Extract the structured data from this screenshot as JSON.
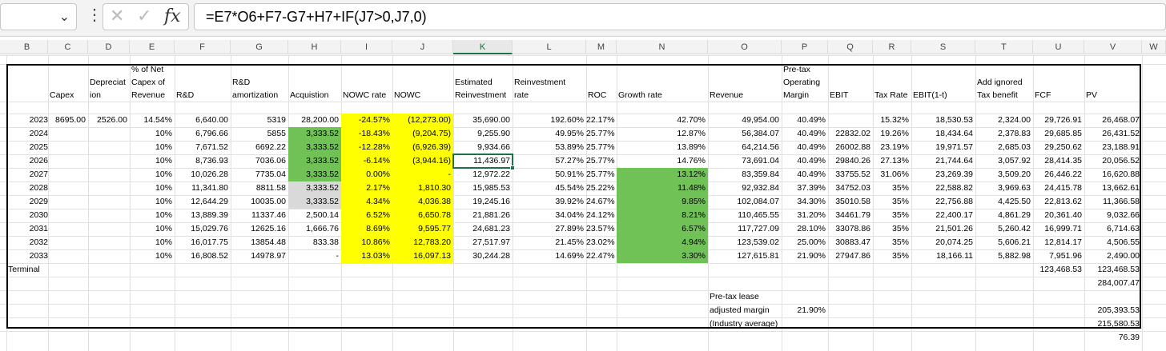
{
  "formula_bar": {
    "name_box": "",
    "formula": "=E7*O6+F7-G7+H7+IF(J7>0,J7,0)",
    "icons": [
      "chevron-down-icon",
      "more-icon",
      "cancel-icon",
      "enter-icon",
      "function-icon"
    ]
  },
  "columns": [
    "B",
    "C",
    "D",
    "E",
    "F",
    "G",
    "H",
    "I",
    "J",
    "K",
    "L",
    "M",
    "N",
    "O",
    "P",
    "Q",
    "R",
    "S",
    "T",
    "U",
    "V",
    "W"
  ],
  "selected_column": "K",
  "header_row": {
    "capex": "Capex",
    "depr_1": "Depreciat",
    "depr_2": "ion",
    "pct_1": "% of Net",
    "pct_2": "Capex of",
    "pct_3": "Revenue",
    "rd": "R&D",
    "rda_1": "R&D",
    "rda_2": "amortization",
    "acq": "Acquistion",
    "nowc_rate": "NOWC rate",
    "nowc": "NOWC",
    "est_1": "Estimated",
    "est_2": "Reinvestment",
    "rr_1": "Reinvestment",
    "rr_2": "rate",
    "roc": "ROC",
    "growth": "Growth rate",
    "revenue": "Revenue",
    "ptm_1": "Pre-tax",
    "ptm_2": "Operating",
    "ptm_3": "Margin",
    "ebit": "EBIT",
    "tax": "Tax Rate",
    "ebit1t": "EBIT(1-t)",
    "add_1": "Add ignored",
    "add_2": "Tax benefit",
    "fcf": "FCF",
    "pv": "PV"
  },
  "rows": [
    {
      "B": "2023",
      "C": "8695.00",
      "D": "2526.00",
      "E": "14.54%",
      "F": "6,640.00",
      "G": "5319",
      "H": "28,200.00",
      "I": "-24.57%",
      "J": "(12,273.00)",
      "K": "35,690.00",
      "L": "192.60%",
      "M": "22.17%",
      "N": "42.70%",
      "O": "49,954.00",
      "P": "40.49%",
      "Q": "",
      "R": "15.32%",
      "S": "18,530.53",
      "T": "2,324.00",
      "U": "29,726.91",
      "V": "26,468.07"
    },
    {
      "B": "2024",
      "C": "",
      "D": "",
      "E": "10%",
      "F": "6,796.66",
      "G": "5855",
      "H": "3,333.52",
      "I": "-18.43%",
      "J": "(9,204.75)",
      "K": "9,255.90",
      "L": "49.95%",
      "M": "25.77%",
      "N": "12.87%",
      "O": "56,384.07",
      "P": "40.49%",
      "Q": "22832.02",
      "R": "19.26%",
      "S": "18,434.64",
      "T": "2,378.83",
      "U": "29,685.85",
      "V": "26,431.52"
    },
    {
      "B": "2025",
      "C": "",
      "D": "",
      "E": "10%",
      "F": "7,671.52",
      "G": "6692.22",
      "H": "3,333.52",
      "I": "-12.28%",
      "J": "(6,926.39)",
      "K": "9,934.66",
      "L": "53.89%",
      "M": "25.77%",
      "N": "13.89%",
      "O": "64,214.56",
      "P": "40.49%",
      "Q": "26002.88",
      "R": "23.19%",
      "S": "19,971.57",
      "T": "2,685.03",
      "U": "29,250.62",
      "V": "23,188.91"
    },
    {
      "B": "2026",
      "C": "",
      "D": "",
      "E": "10%",
      "F": "8,736.93",
      "G": "7036.06",
      "H": "3,333.52",
      "I": "-6.14%",
      "J": "(3,944.16)",
      "K": "11,436.97",
      "L": "57.27%",
      "M": "25.77%",
      "N": "14.76%",
      "O": "73,691.04",
      "P": "40.49%",
      "Q": "29840.26",
      "R": "27.13%",
      "S": "21,744.64",
      "T": "3,057.92",
      "U": "28,414.35",
      "V": "20,056.52"
    },
    {
      "B": "2027",
      "C": "",
      "D": "",
      "E": "10%",
      "F": "10,026.28",
      "G": "7735.04",
      "H": "3,333.52",
      "I": "0.00%",
      "J": "-",
      "K": "12,972.22",
      "L": "50.91%",
      "M": "25.77%",
      "N": "13.12%",
      "O": "83,359.84",
      "P": "40.49%",
      "Q": "33755.52",
      "R": "31.06%",
      "S": "23,269.39",
      "T": "3,509.20",
      "U": "26,446.22",
      "V": "16,620.88"
    },
    {
      "B": "2028",
      "C": "",
      "D": "",
      "E": "10%",
      "F": "11,341.80",
      "G": "8811.58",
      "H": "3,333.52",
      "I": "2.17%",
      "J": "1,810.30",
      "K": "15,985.53",
      "L": "45.54%",
      "M": "25.22%",
      "N": "11.48%",
      "O": "92,932.84",
      "P": "37.39%",
      "Q": "34752.03",
      "R": "35%",
      "S": "22,588.82",
      "T": "3,969.63",
      "U": "24,415.78",
      "V": "13,662.61"
    },
    {
      "B": "2029",
      "C": "",
      "D": "",
      "E": "10%",
      "F": "12,644.29",
      "G": "10035.00",
      "H": "3,333.52",
      "I": "4.34%",
      "J": "4,036.38",
      "K": "19,245.16",
      "L": "39.92%",
      "M": "24.67%",
      "N": "9.85%",
      "O": "102,084.07",
      "P": "34.30%",
      "Q": "35010.58",
      "R": "35%",
      "S": "22,756.88",
      "T": "4,425.50",
      "U": "22,813.62",
      "V": "11,366.58"
    },
    {
      "B": "2030",
      "C": "",
      "D": "",
      "E": "10%",
      "F": "13,889.39",
      "G": "11337.46",
      "H": "2,500.14",
      "I": "6.52%",
      "J": "6,650.78",
      "K": "21,881.26",
      "L": "34.04%",
      "M": "24.12%",
      "N": "8.21%",
      "O": "110,465.55",
      "P": "31.20%",
      "Q": "34461.79",
      "R": "35%",
      "S": "22,400.17",
      "T": "4,861.29",
      "U": "20,361.40",
      "V": "9,032.66"
    },
    {
      "B": "2031",
      "C": "",
      "D": "",
      "E": "10%",
      "F": "15,029.76",
      "G": "12625.16",
      "H": "1,666.76",
      "I": "8.69%",
      "J": "9,595.77",
      "K": "24,681.23",
      "L": "27.89%",
      "M": "23.57%",
      "N": "6.57%",
      "O": "117,727.09",
      "P": "28.10%",
      "Q": "33078.86",
      "R": "35%",
      "S": "21,501.26",
      "T": "5,260.42",
      "U": "16,999.71",
      "V": "6,714.63"
    },
    {
      "B": "2032",
      "C": "",
      "D": "",
      "E": "10%",
      "F": "16,017.75",
      "G": "13854.48",
      "H": "833.38",
      "I": "10.86%",
      "J": "12,783.20",
      "K": "27,517.97",
      "L": "21.45%",
      "M": "23.02%",
      "N": "4.94%",
      "O": "123,539.02",
      "P": "25.00%",
      "Q": "30883.47",
      "R": "35%",
      "S": "20,074.25",
      "T": "5,606.21",
      "U": "12,814.17",
      "V": "4,506.55"
    },
    {
      "B": "2033",
      "C": "",
      "D": "",
      "E": "10%",
      "F": "16,808.52",
      "G": "14978.97",
      "H": "-",
      "I": "13.03%",
      "J": "16,097.13",
      "K": "30,244.28",
      "L": "14.69%",
      "M": "22.47%",
      "N": "3.30%",
      "O": "127,615.81",
      "P": "21.90%",
      "Q": "27947.86",
      "R": "35%",
      "S": "18,166.11",
      "T": "5,882.98",
      "U": "7,951.96",
      "V": "2,490.00"
    }
  ],
  "terminal": {
    "label": "Terminal",
    "U": "123,468.53",
    "V": "123,468.53"
  },
  "footer": {
    "v_1": "284,007.47",
    "lease_1": "Pre-tax lease",
    "lease_2": "adjusted margin",
    "lease_3": "(Industry average)",
    "lease_val": "21.90%",
    "v_2": "205,393.53",
    "v_3": "215,580.53",
    "v_4": "76.39"
  },
  "colors": {
    "yellow": "#ffff00",
    "green": "#92d050",
    "grey": "#d9d9d9",
    "accent": "#1e7145"
  }
}
